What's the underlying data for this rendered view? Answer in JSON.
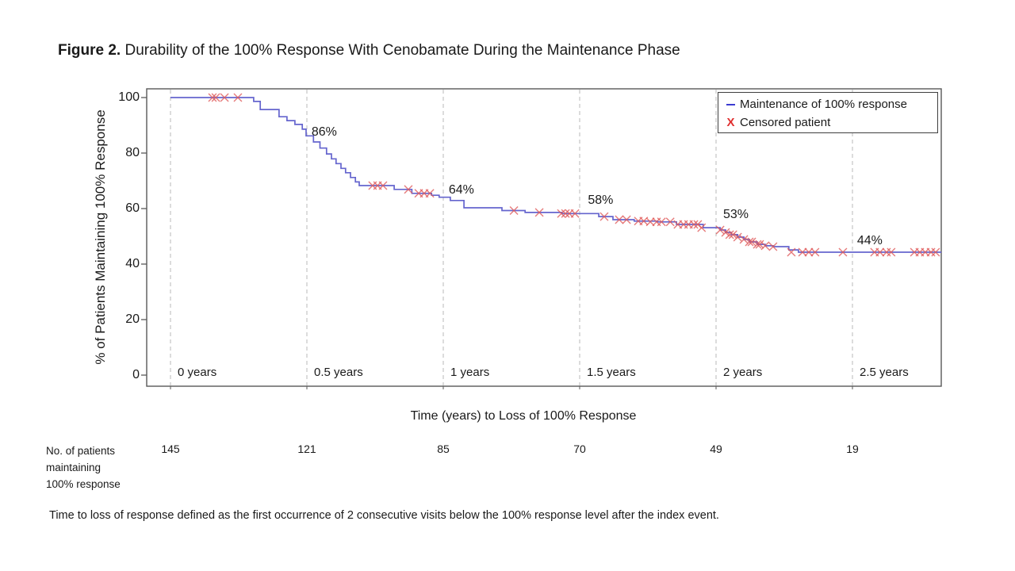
{
  "figure": {
    "title_prefix": "Figure 2.",
    "title_text": "Durability of the 100% Response With Cenobamate During the Maintenance Phase",
    "footnote": "Time to loss of response defined as the first occurrence of 2 consecutive visits below the 100% response level after the index event."
  },
  "colors": {
    "curve": "#6565ce",
    "censor": "#e05a5a",
    "gridline": "#c4c4c4",
    "plot_border": "#595959",
    "legend_line": "#3b3bd1",
    "legend_x": "#e03030",
    "text": "#1a1a1a"
  },
  "chart_data": {
    "type": "line",
    "subtype": "kaplan_meier_step",
    "title": "Durability of the 100% Response With Cenobamate During the Maintenance Phase",
    "xlabel": "Time (years) to Loss of 100% Response",
    "ylabel": "% of Patients Maintaining 100% Response",
    "xlim": [
      0,
      2.83
    ],
    "ylim": [
      0,
      100
    ],
    "grid": "vertical-dashed",
    "y_ticks": [
      100,
      80,
      60,
      40,
      20,
      0
    ],
    "x_ticks": [
      {
        "t": 0,
        "label": "0 years"
      },
      {
        "t": 0.5,
        "label": "0.5 years"
      },
      {
        "t": 1,
        "label": "1 years"
      },
      {
        "t": 1.5,
        "label": "1.5 years"
      },
      {
        "t": 2,
        "label": "2 years"
      },
      {
        "t": 2.5,
        "label": "2.5 years"
      }
    ],
    "legend": {
      "position": "top-right",
      "items": [
        {
          "label": "Maintenance of 100% response",
          "marker": "line",
          "color": "#3b3bd1"
        },
        {
          "label": "Censored patient",
          "marker": "x",
          "marker_glyph": "X",
          "color": "#e03030"
        }
      ]
    },
    "series": [
      {
        "name": "Maintenance of 100% response",
        "steps": [
          [
            0,
            100
          ],
          [
            0.305,
            98.6
          ],
          [
            0.329,
            95.7
          ],
          [
            0.398,
            93.1
          ],
          [
            0.427,
            91.7
          ],
          [
            0.456,
            90.3
          ],
          [
            0.483,
            88.6
          ],
          [
            0.497,
            86.2
          ],
          [
            0.524,
            84.0
          ],
          [
            0.548,
            81.8
          ],
          [
            0.572,
            79.7
          ],
          [
            0.59,
            77.9
          ],
          [
            0.607,
            76.2
          ],
          [
            0.625,
            74.5
          ],
          [
            0.642,
            72.9
          ],
          [
            0.66,
            71.2
          ],
          [
            0.678,
            69.6
          ],
          [
            0.692,
            68.3
          ],
          [
            0.82,
            66.9
          ],
          [
            0.885,
            65.5
          ],
          [
            0.957,
            64.8
          ],
          [
            0.985,
            64.1
          ],
          [
            1.026,
            62.9
          ],
          [
            1.076,
            60.3
          ],
          [
            1.215,
            59.3
          ],
          [
            1.3,
            58.6
          ],
          [
            1.435,
            58.2
          ],
          [
            1.57,
            57.1
          ],
          [
            1.622,
            56.0
          ],
          [
            1.7,
            55.5
          ],
          [
            1.786,
            55.2
          ],
          [
            1.855,
            54.3
          ],
          [
            1.953,
            53.1
          ],
          [
            2.015,
            52.3
          ],
          [
            2.035,
            51.4
          ],
          [
            2.056,
            50.6
          ],
          [
            2.079,
            49.7
          ],
          [
            2.102,
            48.9
          ],
          [
            2.122,
            48.0
          ],
          [
            2.151,
            47.1
          ],
          [
            2.18,
            46.6
          ],
          [
            2.209,
            46.3
          ],
          [
            2.267,
            45.1
          ],
          [
            2.302,
            44.3
          ],
          [
            2.826,
            44.3
          ]
        ]
      }
    ],
    "censored_points": [
      [
        0.154,
        100
      ],
      [
        0.166,
        100
      ],
      [
        0.198,
        100
      ],
      [
        0.247,
        100
      ],
      [
        0.741,
        68.3
      ],
      [
        0.759,
        68.3
      ],
      [
        0.779,
        68.3
      ],
      [
        0.872,
        66.9
      ],
      [
        0.91,
        65.5
      ],
      [
        0.93,
        65.5
      ],
      [
        0.951,
        65.5
      ],
      [
        1.259,
        59.3
      ],
      [
        1.352,
        58.6
      ],
      [
        1.433,
        58.2
      ],
      [
        1.448,
        58.2
      ],
      [
        1.462,
        58.2
      ],
      [
        1.483,
        58.2
      ],
      [
        1.59,
        57.1
      ],
      [
        1.645,
        56.0
      ],
      [
        1.672,
        56.0
      ],
      [
        1.715,
        55.5
      ],
      [
        1.735,
        55.5
      ],
      [
        1.759,
        55.2
      ],
      [
        1.782,
        55.2
      ],
      [
        1.8,
        55.2
      ],
      [
        1.832,
        55.2
      ],
      [
        1.86,
        54.3
      ],
      [
        1.881,
        54.3
      ],
      [
        1.899,
        54.3
      ],
      [
        1.919,
        54.3
      ],
      [
        1.933,
        54.3
      ],
      [
        1.947,
        53.1
      ],
      [
        2.015,
        52.3
      ],
      [
        2.035,
        51.4
      ],
      [
        2.05,
        50.6
      ],
      [
        2.062,
        50.6
      ],
      [
        2.079,
        49.7
      ],
      [
        2.102,
        48.9
      ],
      [
        2.122,
        48.0
      ],
      [
        2.131,
        48.0
      ],
      [
        2.151,
        47.1
      ],
      [
        2.16,
        47.1
      ],
      [
        2.18,
        46.6
      ],
      [
        2.209,
        46.3
      ],
      [
        2.276,
        44.3
      ],
      [
        2.317,
        44.3
      ],
      [
        2.34,
        44.3
      ],
      [
        2.363,
        44.3
      ],
      [
        2.465,
        44.3
      ],
      [
        2.581,
        44.3
      ],
      [
        2.601,
        44.3
      ],
      [
        2.625,
        44.3
      ],
      [
        2.642,
        44.3
      ],
      [
        2.727,
        44.3
      ],
      [
        2.747,
        44.3
      ],
      [
        2.767,
        44.3
      ],
      [
        2.788,
        44.3
      ],
      [
        2.805,
        44.3
      ]
    ],
    "annotations": [
      {
        "label": "86%",
        "t": 0.517,
        "pct": 90.0
      },
      {
        "label": "64%",
        "t": 1.02,
        "pct": 69.1
      },
      {
        "label": "58%",
        "t": 1.53,
        "pct": 65.4
      },
      {
        "label": "53%",
        "t": 2.026,
        "pct": 60.3
      },
      {
        "label": "44%",
        "t": 2.517,
        "pct": 50.9
      }
    ]
  },
  "risk_table": {
    "label_lines": [
      "No. of patients",
      "maintaining",
      "100% response"
    ],
    "times": [
      0,
      0.5,
      1,
      1.5,
      2,
      2.5
    ],
    "values": [
      "145",
      "121",
      "85",
      "70",
      "49",
      "19"
    ]
  }
}
